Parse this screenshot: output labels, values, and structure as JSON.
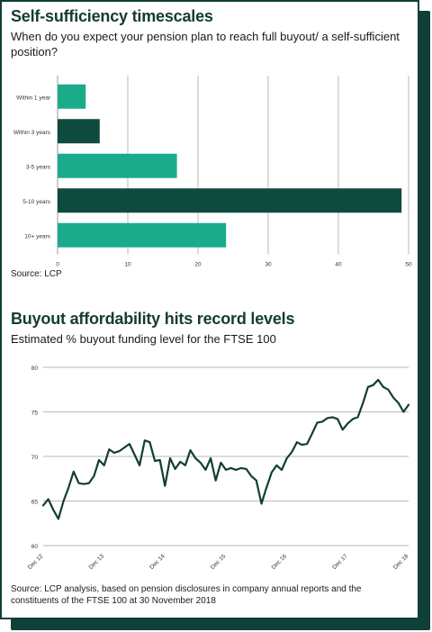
{
  "panel1": {
    "title": "Self-sufficiency timescales",
    "subtitle": "When do you expect your pension plan to reach full buyout/ a self-sufficient position?",
    "source": "Source: LCP"
  },
  "panel2": {
    "title": "Buyout affordability hits record levels",
    "subtitle": "Estimated % buyout funding level for the FTSE 100",
    "source": "Source: LCP analysis, based on pension disclosures in company annual reports and the constituents of the FTSE 100 at 30 November 2018"
  },
  "colors": {
    "light_green": "#1aab8a",
    "dark_green": "#0f4a3f",
    "line": "#123d35",
    "frame": "#0f3f37"
  },
  "chart_data": [
    {
      "type": "bar",
      "orientation": "horizontal",
      "categories": [
        "Within 1 year",
        "Within 3 years",
        "3-5 years",
        "5-10 years",
        "10+ years"
      ],
      "values": [
        4,
        6,
        17,
        49,
        24
      ],
      "bar_colors": [
        "#1aab8a",
        "#0f4a3f",
        "#1aab8a",
        "#0f4a3f",
        "#1aab8a"
      ],
      "xlim": [
        0,
        50
      ],
      "xticks": [
        0,
        10,
        20,
        30,
        40,
        50
      ],
      "grid": "vertical"
    },
    {
      "type": "line",
      "x_labels": [
        "Dec 12",
        "Dec 13",
        "Dec 14",
        "Dec 15",
        "Dec 16",
        "Dec 17",
        "Dec 18"
      ],
      "ylim": [
        60,
        80
      ],
      "yticks": [
        60,
        65,
        70,
        75,
        80
      ],
      "grid": "horizontal",
      "x_start": 0,
      "x_end": 72,
      "series": [
        {
          "x": [
            0,
            1,
            2,
            3,
            4,
            5,
            6,
            7,
            8,
            9,
            10,
            11,
            12,
            13,
            14,
            15,
            16,
            17,
            18,
            19,
            20,
            21,
            22,
            23,
            24,
            25,
            26,
            27,
            28,
            29,
            30,
            31,
            32,
            33,
            34,
            35,
            36,
            37,
            38,
            39,
            40,
            41,
            42,
            43,
            44,
            45,
            46,
            47,
            48,
            49,
            50,
            51,
            52,
            53,
            54,
            55,
            56,
            57,
            58,
            59,
            60,
            61,
            62,
            63,
            64,
            65,
            66,
            67,
            68,
            69,
            70,
            71,
            72
          ],
          "values": [
            64.5,
            65.2,
            64.0,
            63.0,
            65.0,
            66.5,
            68.3,
            67.0,
            66.9,
            67.0,
            67.8,
            69.6,
            69.0,
            70.8,
            70.4,
            70.6,
            71.0,
            71.4,
            70.2,
            69.0,
            71.8,
            71.6,
            69.5,
            69.6,
            66.7,
            69.8,
            68.6,
            69.4,
            69.0,
            70.7,
            69.8,
            69.3,
            68.5,
            69.8,
            67.3,
            69.3,
            68.5,
            68.7,
            68.5,
            68.7,
            68.6,
            67.8,
            67.3,
            64.7,
            66.5,
            68.2,
            69.0,
            68.5,
            69.8,
            70.5,
            71.6,
            71.3,
            71.4,
            72.6,
            73.8,
            73.9,
            74.3,
            74.4,
            74.2,
            73.0,
            73.7,
            74.2,
            74.4,
            76.0,
            77.8,
            78.0,
            78.6,
            77.8,
            77.5,
            76.6,
            76.0,
            75.0,
            75.8
          ]
        }
      ]
    }
  ]
}
